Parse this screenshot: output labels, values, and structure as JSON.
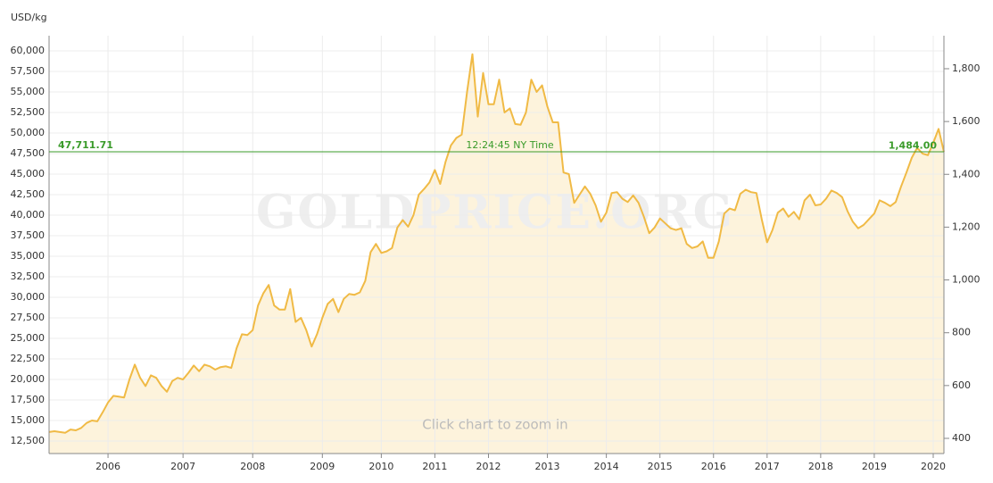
{
  "chart_data": {
    "type": "area_line",
    "y_label": "USD/kg",
    "watermark": "GOLDPRICE.ORG",
    "annotation": "Click chart to zoom in",
    "time_label": "12:24:45 NY Time",
    "current_price": {
      "value": 47711.71,
      "label": "47,711.71"
    },
    "current_price_y2": {
      "value": 1484,
      "label": "1,484.00"
    },
    "current_color": "#3a9b2a",
    "color": "#f0ba45",
    "fill_color": "#fdf3dc",
    "grid": true,
    "categories": [
      null,
      null,
      null,
      null,
      null,
      null,
      null,
      null,
      null,
      null,
      null,
      "2006",
      null,
      null,
      null,
      null,
      null,
      null,
      null,
      null,
      null,
      null,
      null,
      null,
      null,
      "2007",
      null,
      null,
      null,
      null,
      null,
      null,
      null,
      null,
      null,
      null,
      null,
      null,
      "2008",
      null,
      null,
      null,
      null,
      null,
      null,
      null,
      null,
      null,
      null,
      null,
      null,
      "2009",
      null,
      null,
      null,
      null,
      null,
      null,
      null,
      null,
      null,
      null,
      "2010",
      null,
      null,
      null,
      null,
      null,
      null,
      null,
      null,
      null,
      "2011",
      null,
      null,
      null,
      null,
      null,
      null,
      null,
      null,
      null,
      "2012",
      null,
      null,
      null,
      null,
      null,
      null,
      null,
      null,
      null,
      null,
      "2013",
      null,
      null,
      null,
      null,
      null,
      null,
      null,
      null,
      null,
      null,
      "2014",
      null,
      null,
      null,
      null,
      null,
      null,
      null,
      null,
      null,
      "2015",
      null,
      null,
      null,
      null,
      null,
      null,
      null,
      null,
      null,
      "2016",
      null,
      null,
      null,
      null,
      null,
      null,
      null,
      null,
      null,
      "2017",
      null,
      null,
      null,
      null,
      null,
      null,
      null,
      null,
      null,
      "2018",
      null,
      null,
      null,
      null,
      null,
      null,
      null,
      null,
      null,
      "2019",
      null,
      null,
      null,
      null,
      null,
      null,
      null,
      null,
      null,
      null,
      "2020",
      null,
      null
    ],
    "values": [
      13600,
      13700,
      13600,
      13500,
      13900,
      13800,
      14100,
      14700,
      15000,
      14900,
      16000,
      17200,
      18000,
      17900,
      17800,
      20000,
      21800,
      20200,
      19200,
      20500,
      20200,
      19200,
      18500,
      19800,
      20200,
      20000,
      20800,
      21700,
      21000,
      21800,
      21600,
      21200,
      21500,
      21600,
      21400,
      23800,
      25500,
      25400,
      26000,
      29000,
      30500,
      31500,
      29000,
      28500,
      28500,
      31000,
      27000,
      27500,
      26000,
      24000,
      25500,
      27500,
      29200,
      29800,
      28200,
      29800,
      30400,
      30300,
      30600,
      32000,
      35500,
      36500,
      35400,
      35600,
      36000,
      38500,
      39400,
      38600,
      40000,
      42500,
      43200,
      44000,
      45500,
      43800,
      46500,
      48500,
      49400,
      49800,
      55000,
      59600,
      52000,
      57300,
      53500,
      53500,
      56500,
      52500,
      53000,
      51100,
      51000,
      52500,
      56500,
      55000,
      55800,
      53200,
      51300,
      51300,
      45200,
      45000,
      41500,
      42500,
      43500,
      42600,
      41200,
      39200,
      40300,
      42700,
      42800,
      42000,
      41600,
      42400,
      41500,
      39800,
      37800,
      38500,
      39600,
      39000,
      38400,
      38200,
      38400,
      36500,
      36000,
      36200,
      36800,
      34800,
      34800,
      36800,
      40200,
      40800,
      40600,
      42600,
      43100,
      42800,
      42700,
      39500,
      36700,
      38200,
      40300,
      40800,
      39800,
      40400,
      39500,
      41800,
      42500,
      41200,
      41300,
      42000,
      43000,
      42700,
      42200,
      40500,
      39200,
      38400,
      38800,
      39500,
      40200,
      41800,
      41500,
      41100,
      41600,
      43500,
      45200,
      47000,
      48200,
      47500,
      47300,
      48800,
      50500,
      47700
    ],
    "ylim": [
      10978,
      61848
    ],
    "yticks": [
      {
        "value": 12500,
        "label": "12,500"
      },
      {
        "value": 15000,
        "label": "15,000"
      },
      {
        "value": 17500,
        "label": "17,500"
      },
      {
        "value": 20000,
        "label": "20,000"
      },
      {
        "value": 22500,
        "label": "22,500"
      },
      {
        "value": 25000,
        "label": "25,000"
      },
      {
        "value": 27500,
        "label": "27,500"
      },
      {
        "value": 30000,
        "label": "30,000"
      },
      {
        "value": 32500,
        "label": "32,500"
      },
      {
        "value": 35000,
        "label": "35,000"
      },
      {
        "value": 37500,
        "label": "37,500"
      },
      {
        "value": 40000,
        "label": "40,000"
      },
      {
        "value": 42500,
        "label": "42,500"
      },
      {
        "value": 45000,
        "label": "45,000"
      },
      {
        "value": 47500,
        "label": "47,500"
      },
      {
        "value": 50000,
        "label": "50,000"
      },
      {
        "value": 52500,
        "label": "52,500"
      },
      {
        "value": 55000,
        "label": "55,000"
      },
      {
        "value": 57500,
        "label": "57,500"
      },
      {
        "value": 60000,
        "label": "60,000"
      }
    ],
    "y2lim": [
      342.5,
      1925
    ],
    "y2ticks": [
      400,
      600,
      800,
      {
        "value": 1000,
        "label": "1,000"
      },
      {
        "value": 1200,
        "label": "1,200"
      },
      {
        "value": 1400,
        "label": "1,400"
      },
      {
        "value": 1600,
        "label": "1,600"
      },
      {
        "value": 1800,
        "label": "1,800"
      }
    ]
  }
}
